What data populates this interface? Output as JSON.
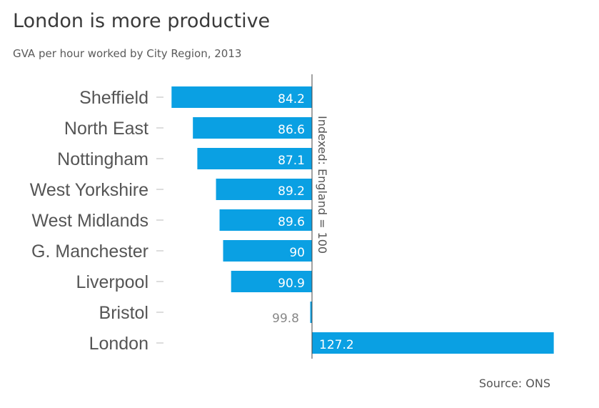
{
  "title": "London is more productive",
  "subtitle": "GVA per hour worked by City Region, 2013",
  "source": "Source: ONS",
  "colors": {
    "bar": "#0aa0e3",
    "label_inside": "#ffffff",
    "label_outside": "#888888",
    "axis": "#444444"
  },
  "chart_data": {
    "type": "bar",
    "orientation": "horizontal",
    "baseline": 100,
    "categories": [
      "Sheffield",
      "North East",
      "Nottingham",
      "West Yorkshire",
      "West Midlands",
      "G. Manchester",
      "Liverpool",
      "Bristol",
      "London"
    ],
    "values": [
      84.2,
      86.6,
      87.1,
      89.2,
      89.6,
      90,
      90.9,
      99.8,
      127.2
    ],
    "value_labels": [
      "84.2",
      "86.6",
      "87.1",
      "89.2",
      "89.6",
      "90",
      "90.9",
      "99.8",
      "127.2"
    ],
    "baseline_label": "Indexed: England = 100"
  }
}
